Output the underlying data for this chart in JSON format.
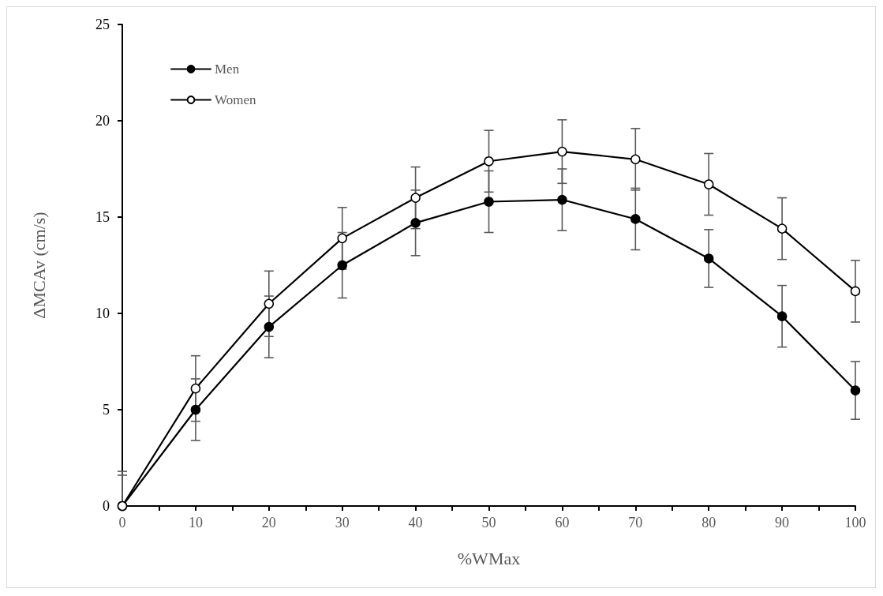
{
  "chart_data": {
    "type": "line",
    "xlabel": "%WMax",
    "ylabel": "ΔMCAv (cm/s)",
    "x": [
      0,
      10,
      20,
      30,
      40,
      50,
      60,
      70,
      80,
      90,
      100
    ],
    "series": [
      {
        "name": "Men",
        "color": "#000000",
        "values": [
          0,
          5.0,
          9.3,
          12.5,
          14.7,
          15.8,
          15.9,
          14.9,
          12.85,
          9.85,
          6.0
        ],
        "errors": [
          [
            0,
            1.6
          ],
          1.6,
          1.6,
          1.7,
          1.7,
          1.6,
          1.6,
          1.6,
          1.5,
          1.6,
          1.5
        ]
      },
      {
        "name": "Women",
        "color": "#ffffff",
        "values": [
          0,
          6.1,
          10.5,
          13.9,
          16.0,
          17.9,
          18.4,
          18.0,
          16.7,
          14.4,
          11.15
        ],
        "errors": [
          [
            0,
            1.8
          ],
          1.7,
          1.7,
          1.6,
          1.6,
          1.6,
          1.65,
          1.6,
          1.6,
          1.6,
          1.6
        ]
      }
    ],
    "xlim": [
      0,
      100
    ],
    "xticks": [
      0,
      {
        "value": 5,
        "label": null
      },
      10,
      {
        "value": 15,
        "label": null
      },
      20,
      {
        "value": 25,
        "label": null
      },
      30,
      {
        "value": 35,
        "label": null
      },
      40,
      {
        "value": 45,
        "label": null
      },
      50,
      {
        "value": 55,
        "label": null
      },
      60,
      {
        "value": 65,
        "label": null
      },
      70,
      {
        "value": 75,
        "label": null
      },
      80,
      {
        "value": 85,
        "label": null
      },
      90,
      {
        "value": 95,
        "label": null
      },
      100
    ],
    "ylim": [
      0,
      25
    ],
    "yticks": [
      0,
      5,
      10,
      15,
      20,
      25
    ],
    "grid": false,
    "legend": "top left",
    "marker": "circle",
    "line_style": "solid"
  }
}
